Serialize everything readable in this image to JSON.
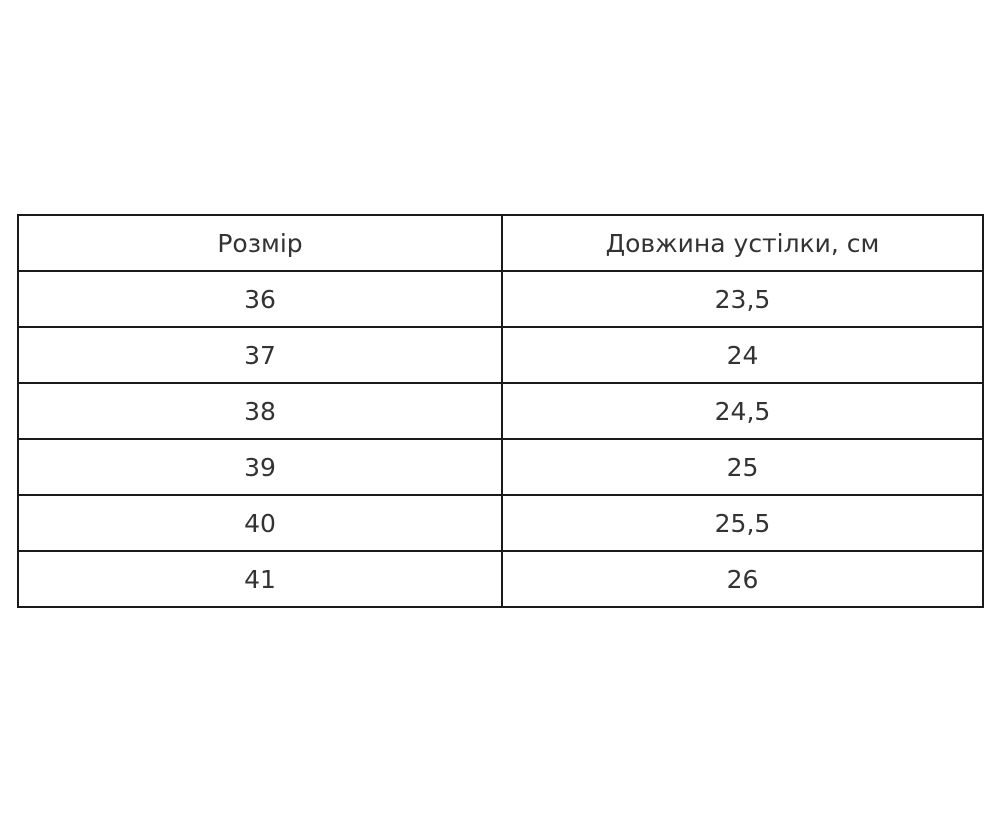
{
  "table": {
    "headers": [
      "Розмір",
      "Довжина устілки, см"
    ],
    "rows": [
      [
        "36",
        "23,5"
      ],
      [
        "37",
        "24"
      ],
      [
        "38",
        "24,5"
      ],
      [
        "39",
        "25"
      ],
      [
        "40",
        "25,5"
      ],
      [
        "41",
        "26"
      ]
    ]
  }
}
